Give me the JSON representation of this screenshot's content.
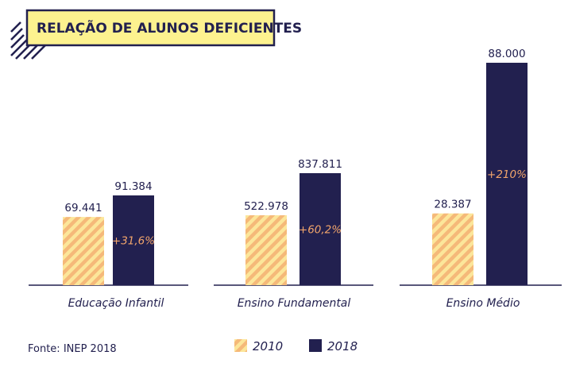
{
  "title": "RELAÇÃO DE ALUNOS DEFICIENTES",
  "source": "Fonte: INEP 2018",
  "colors": {
    "navy": "#22204f",
    "stripe_orange": "#f5b979",
    "stripe_yellow": "#fce69a",
    "title_bg": "#fdf28f",
    "growth_text": "#f2a56b"
  },
  "chart_data": {
    "type": "bar",
    "title": "RELAÇÃO DE ALUNOS DEFICIENTES",
    "categories": [
      "Educação Infantil",
      "Ensino Fundamental",
      "Ensino Médio"
    ],
    "series": [
      {
        "name": "2010",
        "values": [
          69441,
          522978,
          28387
        ],
        "labels": [
          "69.441",
          "522.978",
          "28.387"
        ],
        "fill": "striped-orange"
      },
      {
        "name": "2018",
        "values": [
          91384,
          837811,
          88000
        ],
        "labels": [
          "91.384",
          "837.811",
          "88.000"
        ],
        "fill": "#22204f"
      }
    ],
    "growth_labels": [
      "+31,6%",
      "+60,2%",
      "+210%"
    ],
    "scale": "independent per category (bars not to common scale)",
    "grid": false,
    "legend_position": "bottom-center"
  }
}
